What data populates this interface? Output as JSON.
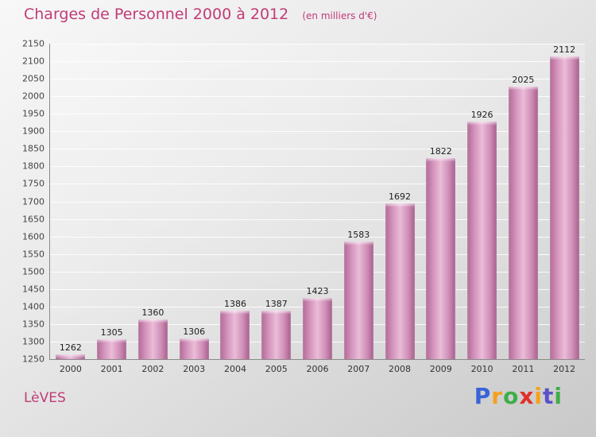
{
  "title": "Charges de Personnel 2000 à 2012",
  "subtitle": "(en milliers d'€)",
  "footer": {
    "entity": "LèVES"
  },
  "logo": {
    "text": "Proxiti",
    "letters": [
      {
        "ch": "P",
        "color": "#3b62d9"
      },
      {
        "ch": "r",
        "color": "#f5a11c"
      },
      {
        "ch": "o",
        "color": "#3fae49"
      },
      {
        "ch": "x",
        "color": "#e0312a"
      },
      {
        "ch": "i",
        "color": "#f5a11c"
      },
      {
        "ch": "t",
        "color": "#5a51c9"
      },
      {
        "ch": "i",
        "color": "#3fae49"
      }
    ]
  },
  "colors": {
    "title": "#c23b76",
    "axis": "#8a8a8a",
    "grid": "#ffffff",
    "bar_edge": "#a65e8d",
    "bar_center": "#eabcd8",
    "value_label": "#1d1d1d",
    "tick_label": "#444444"
  },
  "chart_data": {
    "type": "bar",
    "title": "Charges de Personnel 2000 à 2012",
    "subtitle": "(en milliers d'€)",
    "categories": [
      "2000",
      "2001",
      "2002",
      "2003",
      "2004",
      "2005",
      "2006",
      "2007",
      "2008",
      "2009",
      "2010",
      "2011",
      "2012"
    ],
    "values": [
      1262,
      1305,
      1360,
      1306,
      1386,
      1387,
      1423,
      1583,
      1692,
      1822,
      1926,
      2025,
      2112
    ],
    "xlabel": "",
    "ylabel": "",
    "ylim": [
      1250,
      2150
    ],
    "ytick_step": 50,
    "yticks": [
      1250,
      1300,
      1350,
      1400,
      1450,
      1500,
      1550,
      1600,
      1650,
      1700,
      1750,
      1800,
      1850,
      1900,
      1950,
      2000,
      2050,
      2100,
      2150
    ],
    "grid": true,
    "legend": false
  }
}
